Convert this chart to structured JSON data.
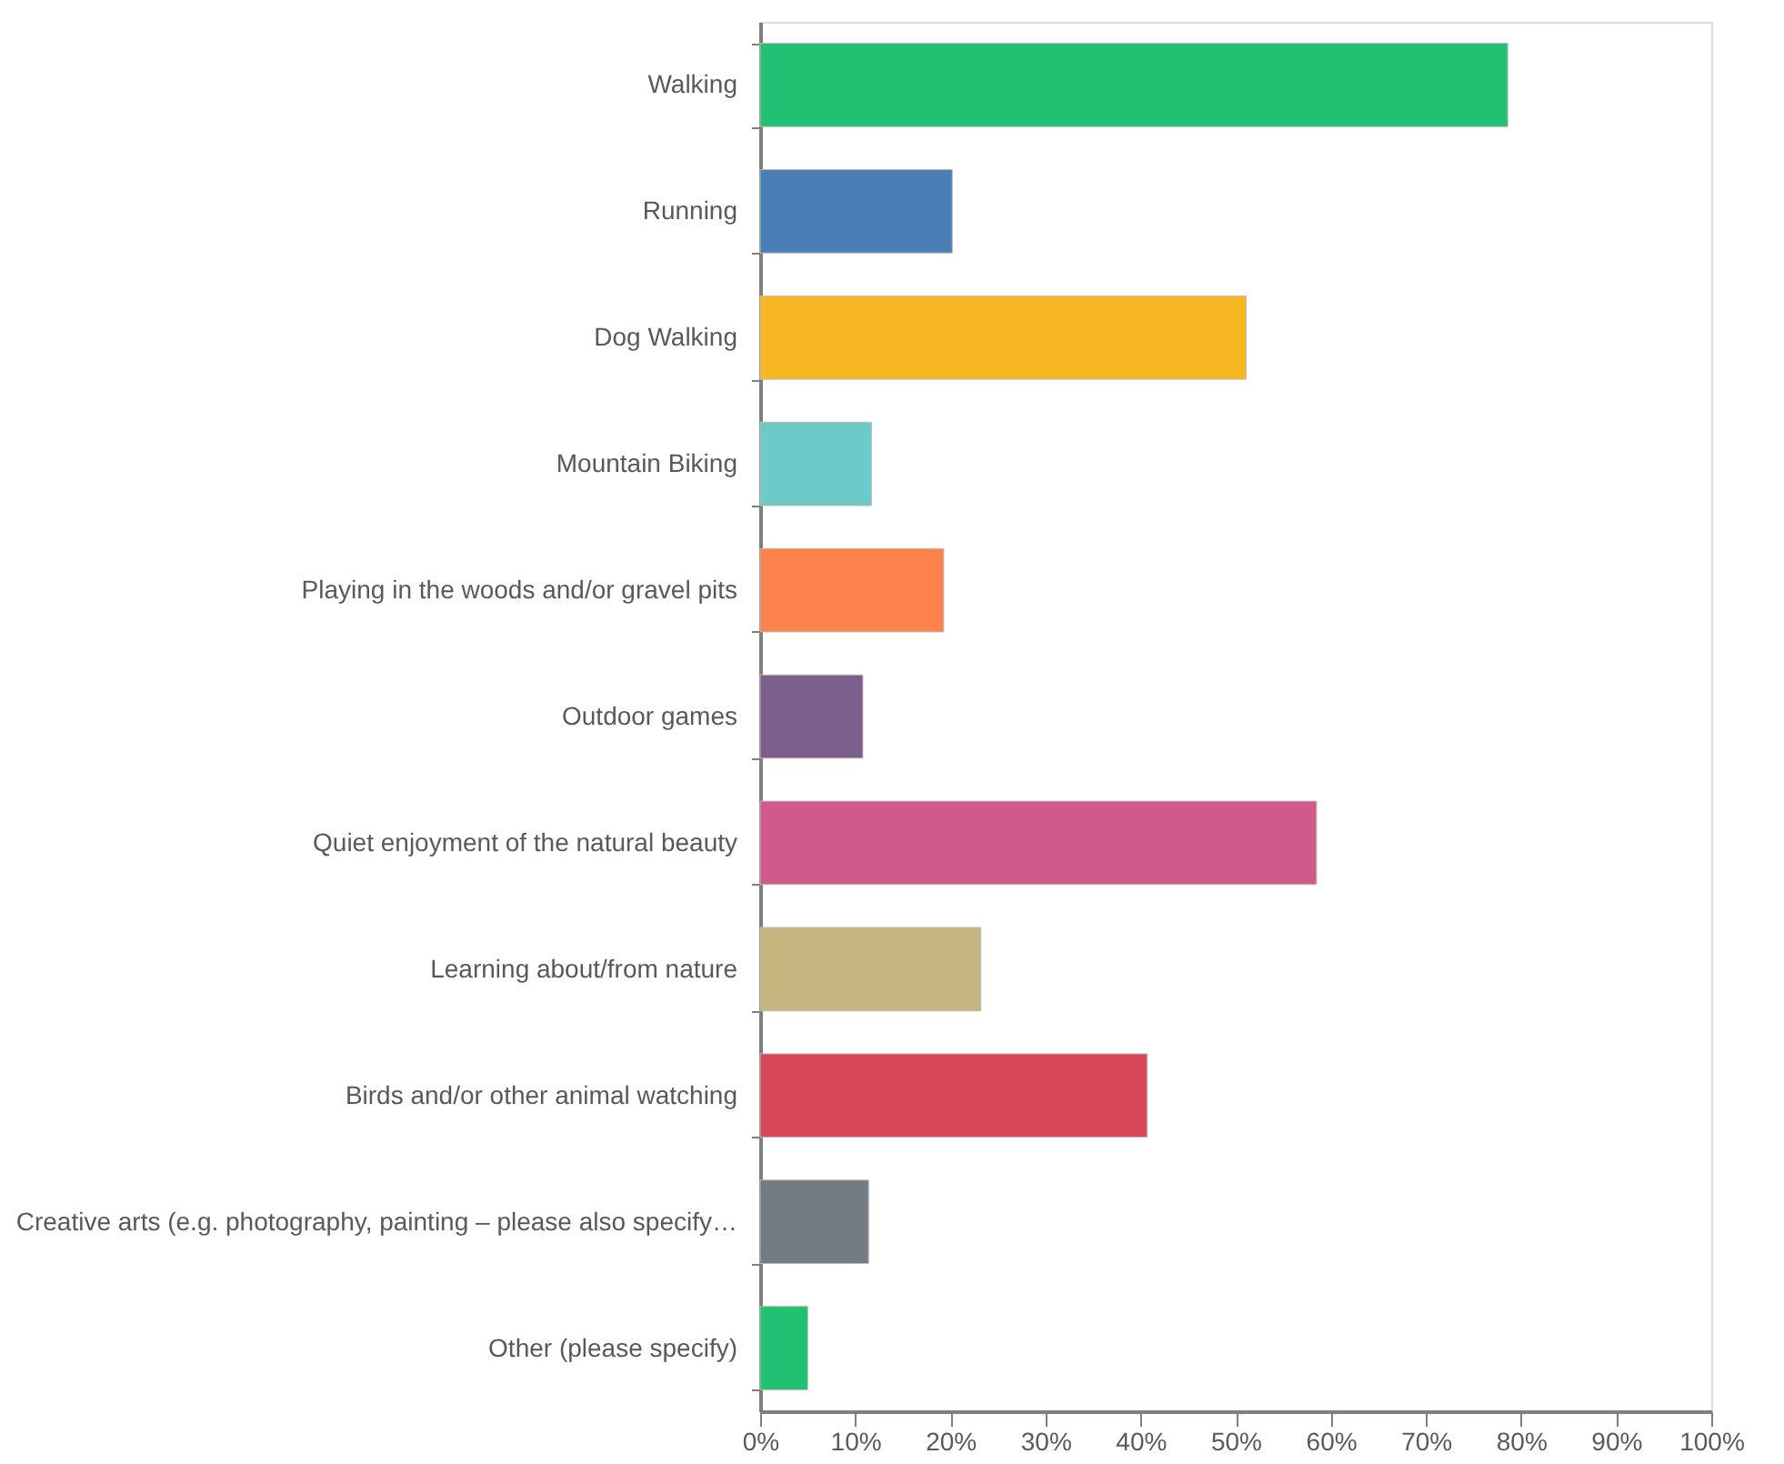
{
  "chart_data": {
    "type": "bar",
    "orientation": "horizontal",
    "categories": [
      "Walking",
      "Running",
      "Dog Walking",
      "Mountain Biking",
      "Playing in the woods and/or gravel pits",
      "Outdoor games",
      "Quiet enjoyment of the natural beauty",
      "Learning about/from nature",
      "Birds and/or other animal watching",
      "Creative arts (e.g. photography, painting – please also specify…",
      "Other (please specify)"
    ],
    "values": [
      78.6,
      20.2,
      51.1,
      11.7,
      19.3,
      10.8,
      58.5,
      23.2,
      40.7,
      11.4,
      5.0
    ],
    "colors": [
      "#22c073",
      "#4a7fb5",
      "#f6b723",
      "#6ccac9",
      "#fd824b",
      "#7c5f8d",
      "#d05a8a",
      "#c7b57f",
      "#d8475a",
      "#737b83",
      "#22c073"
    ],
    "xlim": [
      0,
      100
    ],
    "xticks": [
      {
        "value": 0,
        "label": "0%"
      },
      {
        "value": 10,
        "label": "10%"
      },
      {
        "value": 20,
        "label": "20%"
      },
      {
        "value": 30,
        "label": "30%"
      },
      {
        "value": 40,
        "label": "40%"
      },
      {
        "value": 50,
        "label": "50%"
      },
      {
        "value": 60,
        "label": "60%"
      },
      {
        "value": 70,
        "label": "70%"
      },
      {
        "value": 80,
        "label": "80%"
      },
      {
        "value": 90,
        "label": "90%"
      },
      {
        "value": 100,
        "label": "100%"
      }
    ],
    "grid": false,
    "legend": false
  }
}
